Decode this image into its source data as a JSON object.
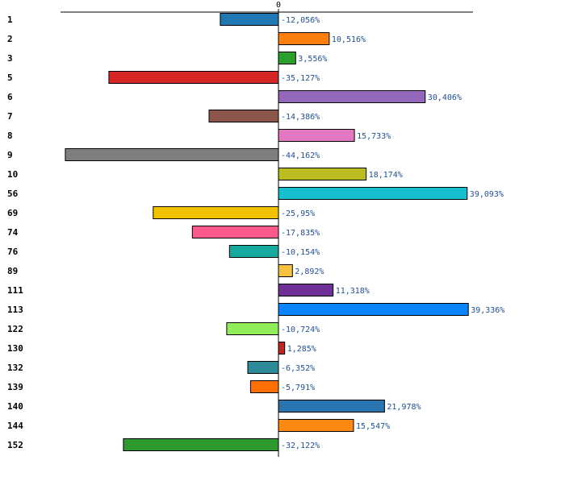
{
  "chart_data": {
    "type": "bar",
    "orientation": "horizontal",
    "title": "",
    "xlabel": "",
    "ylabel": "",
    "zero_tick_label": "0",
    "xlim": [
      -44.162,
      39.336
    ],
    "categories": [
      "1",
      "2",
      "3",
      "5",
      "6",
      "7",
      "8",
      "9",
      "10",
      "56",
      "69",
      "74",
      "76",
      "89",
      "111",
      "113",
      "122",
      "130",
      "132",
      "139",
      "140",
      "144",
      "152"
    ],
    "values": [
      -12.056,
      10.516,
      3.556,
      -35.127,
      30.406,
      -14.386,
      15.733,
      -44.162,
      18.174,
      39.093,
      -25.95,
      -17.835,
      -10.154,
      2.892,
      11.318,
      39.336,
      -10.724,
      1.285,
      -6.352,
      -5.791,
      21.978,
      15.547,
      -32.122
    ],
    "value_labels": [
      "-12,056%",
      "10,516%",
      "3,556%",
      "-35,127%",
      "30,406%",
      "-14,386%",
      "15,733%",
      "-44,162%",
      "18,174%",
      "39,093%",
      "-25,95%",
      "-17,835%",
      "-10,154%",
      "2,892%",
      "11,318%",
      "39,336%",
      "-10,724%",
      "1,285%",
      "-6,352%",
      "-5,791%",
      "21,978%",
      "15,547%",
      "-32,122%"
    ],
    "colors": [
      "#1f77b4",
      "#ff7f0e",
      "#2ca02c",
      "#d62728",
      "#9467bd",
      "#8c564b",
      "#e377c2",
      "#7f7f7f",
      "#bcbd22",
      "#17becf",
      "#f2c200",
      "#ff5a8c",
      "#17a9a0",
      "#f7c242",
      "#6f3198",
      "#0a84ff",
      "#90ee5a",
      "#c0271e",
      "#2e8c9a",
      "#ff7000",
      "#2a74b0",
      "#ff8811",
      "#2e9a2e"
    ]
  }
}
